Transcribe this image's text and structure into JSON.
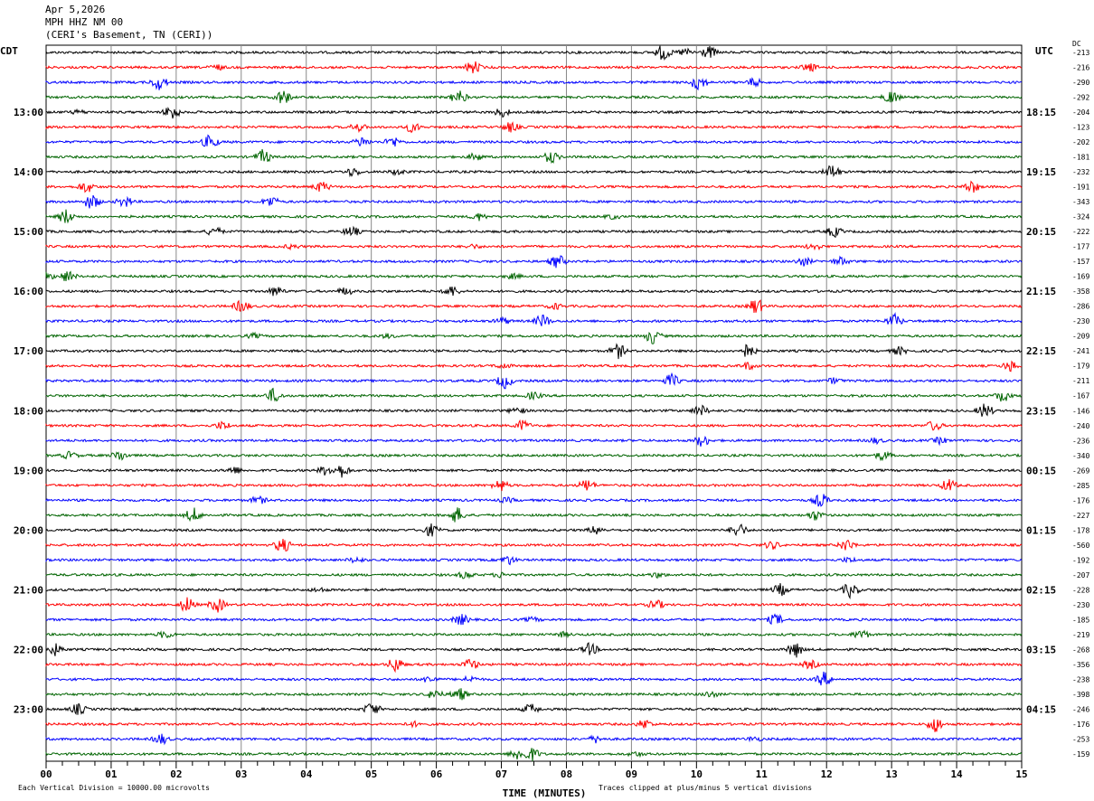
{
  "header": {
    "date": "Apr 5,2026",
    "station": "MPH HHZ NM 00",
    "location": "(CERI's Basement, TN (CERI))"
  },
  "left_tz": "CDT",
  "right_tz": "UTC",
  "dc_label": "DC",
  "footer": {
    "scale": "Each Vertical Division = 10000.00 microvolts",
    "clip": "Traces clipped at plus/minus 5 vertical divisions"
  },
  "chart_data": {
    "type": "helicorder",
    "xlabel": "TIME (MINUTES)",
    "xlim": [
      0,
      15
    ],
    "x_ticks": [
      "00",
      "01",
      "02",
      "03",
      "04",
      "05",
      "06",
      "07",
      "08",
      "09",
      "10",
      "11",
      "12",
      "13",
      "14",
      "15"
    ],
    "grid": true,
    "trace_colors": [
      "#000000",
      "#ff0000",
      "#0000ff",
      "#006400"
    ],
    "left_labels": [
      "13:00",
      "14:00",
      "15:00",
      "16:00",
      "17:00",
      "18:00",
      "19:00",
      "20:00",
      "21:00",
      "22:00",
      "23:00"
    ],
    "right_labels": [
      "18:15",
      "19:15",
      "20:15",
      "21:15",
      "22:15",
      "23:15",
      "00:15",
      "01:15",
      "02:15",
      "03:15",
      "04:15"
    ],
    "dc_values": [
      "-213",
      "-216",
      "-290",
      "-292",
      "-204",
      "-123",
      "-202",
      "-181",
      "-232",
      "-191",
      "-343",
      "-324",
      "-222",
      "-177",
      "-157",
      "-169",
      "-358",
      "-286",
      "-230",
      "-209",
      "-241",
      "-179",
      "-211",
      "-167",
      "-146",
      "-240",
      "-236",
      "-340",
      "-269",
      "-285",
      "-176",
      "-227",
      "-178",
      "-560",
      "-192",
      "-207",
      "-228",
      "-230",
      "-185",
      "-219",
      "-268",
      "-356",
      "-238",
      "-398",
      "-246",
      "-176",
      "-253",
      "-159"
    ]
  }
}
